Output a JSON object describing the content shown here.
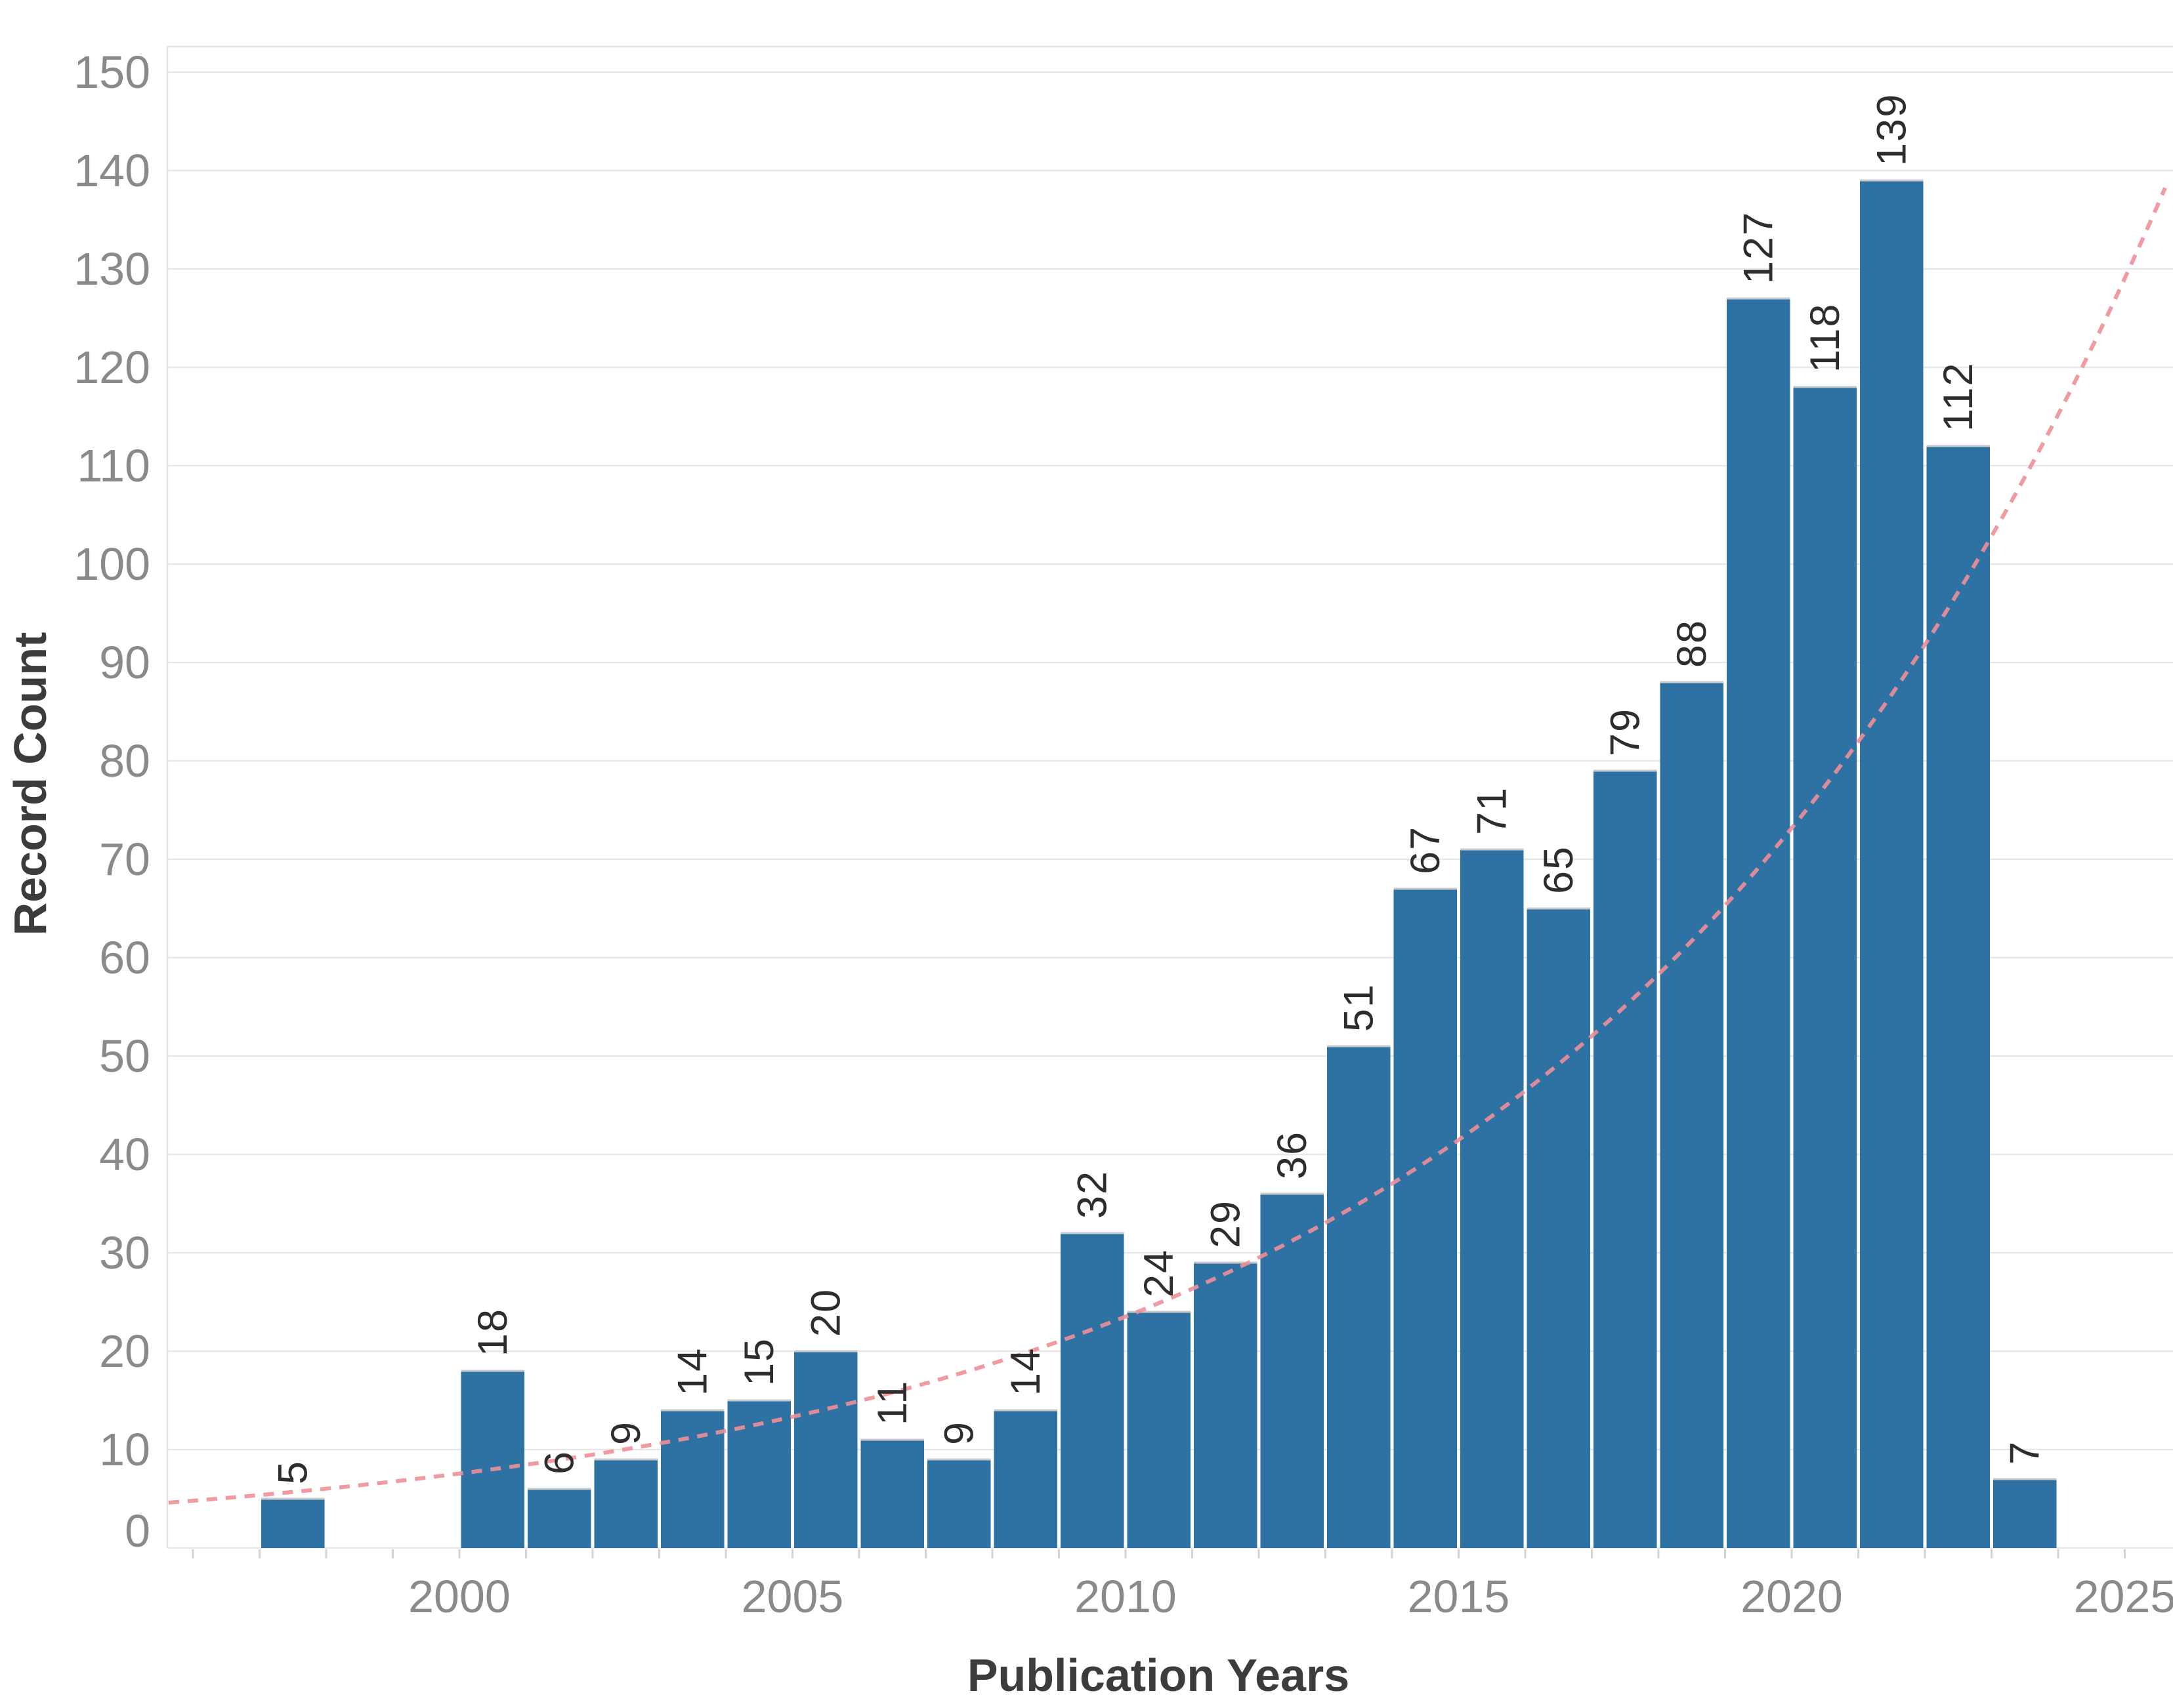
{
  "chart_data": {
    "type": "bar",
    "title": "",
    "xlabel": "Publication Years",
    "ylabel": "Record Count",
    "bars": [
      {
        "year": 1997,
        "count": 5
      },
      {
        "year": 2000,
        "count": 18
      },
      {
        "year": 2001,
        "count": 6
      },
      {
        "year": 2002,
        "count": 9
      },
      {
        "year": 2003,
        "count": 14
      },
      {
        "year": 2004,
        "count": 15
      },
      {
        "year": 2005,
        "count": 20
      },
      {
        "year": 2006,
        "count": 11
      },
      {
        "year": 2007,
        "count": 9
      },
      {
        "year": 2008,
        "count": 14
      },
      {
        "year": 2009,
        "count": 32
      },
      {
        "year": 2010,
        "count": 24
      },
      {
        "year": 2011,
        "count": 29
      },
      {
        "year": 2012,
        "count": 36
      },
      {
        "year": 2013,
        "count": 51
      },
      {
        "year": 2014,
        "count": 67
      },
      {
        "year": 2015,
        "count": 71
      },
      {
        "year": 2016,
        "count": 65
      },
      {
        "year": 2017,
        "count": 79
      },
      {
        "year": 2018,
        "count": 88
      },
      {
        "year": 2019,
        "count": 127
      },
      {
        "year": 2020,
        "count": 118
      },
      {
        "year": 2021,
        "count": 139
      },
      {
        "year": 2022,
        "count": 112
      },
      {
        "year": 2023,
        "count": 7
      }
    ],
    "missing_years": [
      1998,
      1999
    ],
    "x_ticks": [
      2000,
      2005,
      2010,
      2015,
      2020,
      2025
    ],
    "y_ticks": [
      0,
      10,
      20,
      30,
      40,
      50,
      60,
      70,
      80,
      90,
      100,
      110,
      120,
      130,
      140,
      150
    ],
    "ylim": [
      0,
      152.6
    ],
    "xlim": [
      1995.6,
      2025.7
    ],
    "grid": "horizontal",
    "legend": "none",
    "value_labels": "rotated-90-above-bars",
    "trend_line": {
      "shape": "exponential",
      "style": "dashed",
      "base_year": 1996,
      "value_at_base": 4.8,
      "growth_rate_per_year": 0.1135,
      "approx_value_2025": 135
    },
    "colors": {
      "bar": "#2e72a4",
      "bar_top_edge": "#c9c9c9",
      "trend": "#ee8f97",
      "gridline": "#e7e7e7",
      "tick_label": "#8a8a8a",
      "axis_title": "#3c3c3c",
      "value_label": "#2d2d2d",
      "background": "#ffffff"
    }
  }
}
